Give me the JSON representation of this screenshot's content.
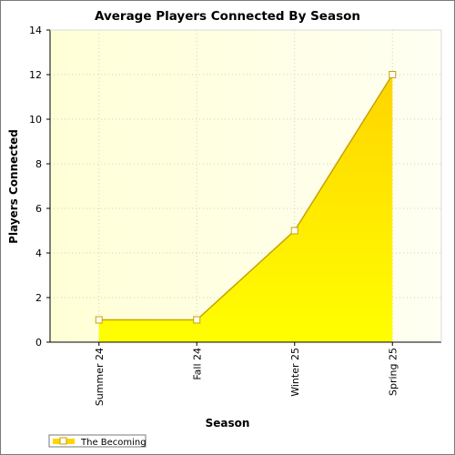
{
  "chart_data": {
    "type": "area",
    "title": "Average Players Connected By Season",
    "xlabel": "Season",
    "ylabel": "Players Connected",
    "categories": [
      "Summer 24",
      "Fall 24",
      "Winter 25",
      "Spring 25"
    ],
    "series": [
      {
        "name": "The Becoming",
        "values": [
          1,
          1,
          5,
          12
        ]
      }
    ],
    "ylim": [
      0,
      14
    ],
    "yticks": [
      0,
      2,
      4,
      6,
      8,
      10,
      12,
      14
    ],
    "grid": true,
    "legend": "bottom-left",
    "colors": {
      "area_top": "#ffd400",
      "area_bottom": "#ffff00",
      "line": "#c9a200",
      "plot_bg_left": "#ffffd6",
      "plot_bg_right": "#fffff2"
    }
  }
}
